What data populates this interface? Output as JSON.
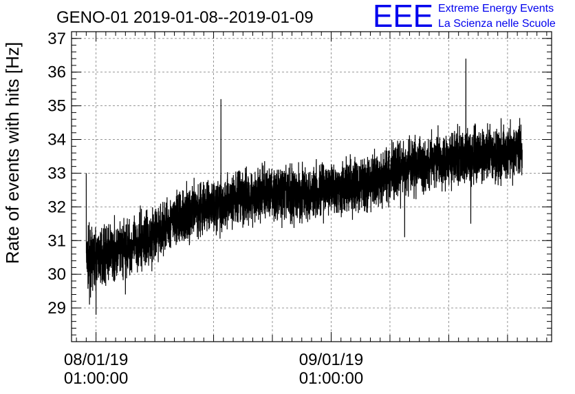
{
  "chart_data": {
    "type": "line",
    "title": "GENO-01 2019-01-08--2019-01-09",
    "xlabel": "",
    "ylabel": "Rate of events with hits [Hz]",
    "ylim": [
      28,
      37.2
    ],
    "xlim": [
      "2019-01-07 22:30:00",
      "2019-01-09 23:30:00"
    ],
    "y_ticks": [
      29,
      30,
      31,
      32,
      33,
      34,
      35,
      36,
      37
    ],
    "x_ticks": [
      {
        "date": "08/01/19",
        "time": "01:00:00",
        "t": "2019-01-08 01:00:00"
      },
      {
        "date": "09/01/19",
        "time": "01:00:00",
        "t": "2019-01-09 01:00:00"
      }
    ],
    "grid": true,
    "series": [
      {
        "trend_t": [
          "2019-01-08 00:00",
          "2019-01-08 03:00",
          "2019-01-08 06:00",
          "2019-01-08 09:00",
          "2019-01-08 12:00",
          "2019-01-08 15:00",
          "2019-01-08 18:00",
          "2019-01-08 21:00",
          "2019-01-09 00:00",
          "2019-01-09 03:00",
          "2019-01-09 06:00",
          "2019-01-09 09:00",
          "2019-01-09 12:00",
          "2019-01-09 15:00",
          "2019-01-09 18:00",
          "2019-01-09 20:30"
        ],
        "trend_y": [
          30.4,
          30.7,
          31.0,
          31.6,
          32.0,
          32.2,
          32.4,
          32.4,
          32.5,
          32.6,
          32.8,
          33.2,
          33.4,
          33.5,
          33.6,
          33.7
        ],
        "spikes": [
          {
            "t": "2019-01-08 00:00",
            "y": 33.0
          },
          {
            "t": "2019-01-08 13:45",
            "y": 35.2
          },
          {
            "t": "2019-01-09 14:45",
            "y": 36.4
          },
          {
            "t": "2019-01-08 00:20",
            "y": 29.1
          },
          {
            "t": "2019-01-08 01:00",
            "y": 28.8
          },
          {
            "t": "2019-01-08 04:00",
            "y": 29.4
          },
          {
            "t": "2019-01-09 08:30",
            "y": 31.1
          },
          {
            "t": "2019-01-09 15:15",
            "y": 31.5
          }
        ]
      }
    ]
  },
  "logo": {
    "mark": "EEE",
    "line1": "Extreme Energy Events",
    "line2": "La Scienza nelle Scuole",
    "color": "#0000ee"
  }
}
